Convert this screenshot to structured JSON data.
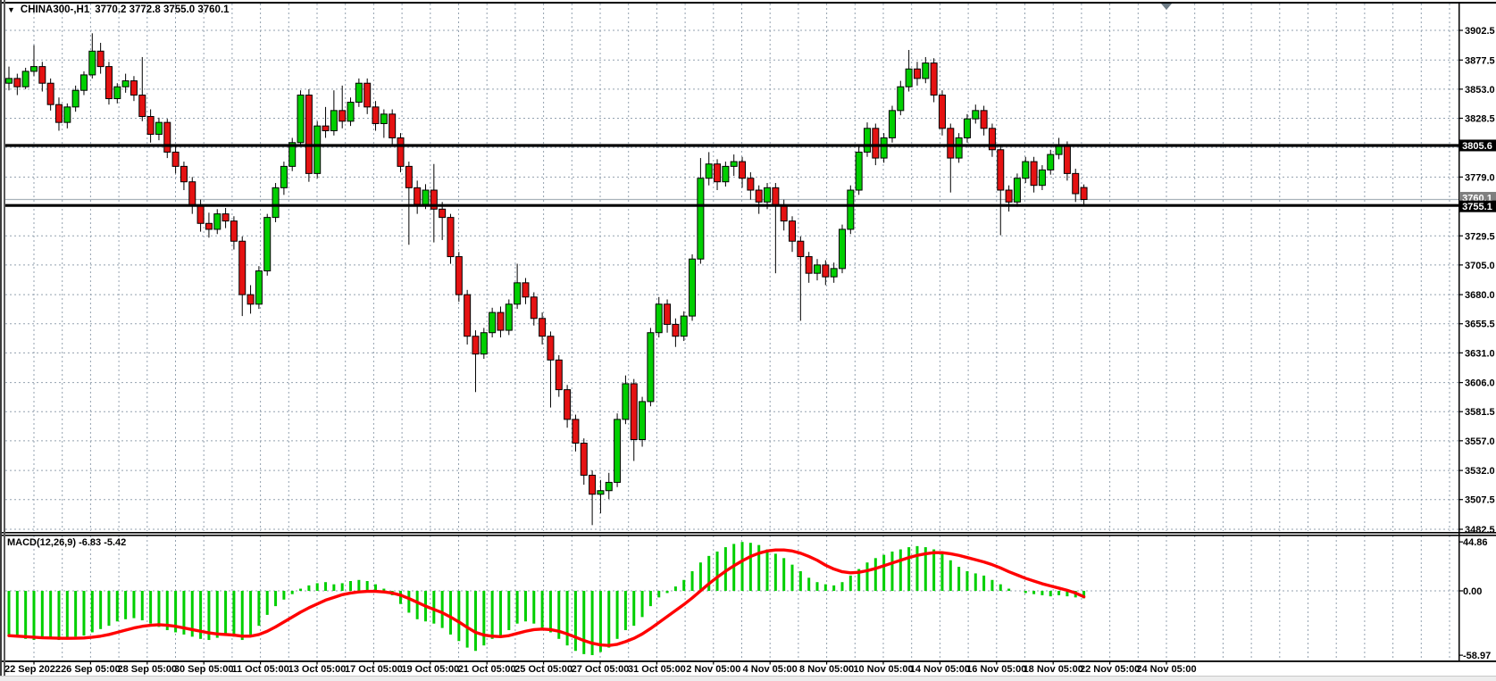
{
  "title_bar": {
    "symbol_period": "CHINA300-,H1",
    "ohlc_text": "3770.2 3772.8 3755.0 3760.1",
    "dropdown_icon": "chevron-down-icon"
  },
  "colors": {
    "background": "#ffffff",
    "bull": "#00cf00",
    "bear": "#e51212",
    "candle_outline": "#000000",
    "wick": "#000000",
    "grid": "#93a1af",
    "frame": "#000000",
    "axis_text": "#000000",
    "level_line": "#000000",
    "current_price_line": "#a9b2ba",
    "badge_black_bg": "#000000",
    "badge_gray_bg": "#7f7f7f",
    "badge_text": "#ffffff",
    "macd_histogram": "#00cf00",
    "macd_signal": "#ff0000",
    "shift_marker": "#6d7b85",
    "bottom_strip": "#ededed"
  },
  "price_axis": {
    "tick_labels": [
      "3902.5",
      "3877.5",
      "3853.0",
      "3828.5",
      "3779.0",
      "3729.5",
      "3705.0",
      "3680.0",
      "3655.5",
      "3631.0",
      "3606.0",
      "3581.5",
      "3557.0",
      "3532.0",
      "3507.5",
      "3482.5"
    ],
    "tick_values": [
      3902.5,
      3877.5,
      3853.0,
      3828.5,
      3779.0,
      3729.5,
      3705.0,
      3680.0,
      3655.5,
      3631.0,
      3606.0,
      3581.5,
      3557.0,
      3532.0,
      3507.5,
      3482.5
    ],
    "hidden_grid_values": [
      3804.0,
      3754.5
    ]
  },
  "levels": {
    "resistance": {
      "value": 3805.6,
      "label": "3805.6"
    },
    "support": {
      "value": 3755.1,
      "label": "3755.1"
    },
    "current": {
      "value": 3760.1,
      "label": "3760.1"
    }
  },
  "indicator": {
    "label": "MACD(12,26,9) -6.83 -5.42",
    "name": "MACD",
    "params": "12,26,9",
    "macd_value": -6.83,
    "signal_value": -5.42,
    "axis_labels": [
      "44.86",
      "0.00",
      "-58.97"
    ],
    "axis_values": [
      44.86,
      0,
      -58.97
    ]
  },
  "chart_data": [
    {
      "type": "candlestick",
      "title": "CHINA300-,H1",
      "last_bar": {
        "open": 3770.2,
        "high": 3772.8,
        "low": 3755.0,
        "close": 3760.1
      },
      "ylim": [
        3482.5,
        3902.5
      ],
      "grid": "on",
      "x_labels": [
        "22 Sep 2022",
        "26 Sep 05:00",
        "28 Sep 05:00",
        "30 Sep 05:00",
        "11 Oct 05:00",
        "13 Oct 05:00",
        "17 Oct 05:00",
        "19 Oct 05:00",
        "21 Oct 05:00",
        "25 Oct 05:00",
        "27 Oct 05:00",
        "31 Oct 05:00",
        "2 Nov 05:00",
        "4 Nov 05:00",
        "8 Nov 05:00",
        "10 Nov 05:00",
        "14 Nov 05:00",
        "16 Nov 05:00",
        "18 Nov 05:00",
        "22 Nov 05:00",
        "24 Nov 05:00"
      ],
      "candles": [
        [
          3858,
          3872,
          3852,
          3862
        ],
        [
          3862,
          3866,
          3848,
          3855
        ],
        [
          3855,
          3871,
          3853,
          3868
        ],
        [
          3868,
          3890,
          3864,
          3872
        ],
        [
          3872,
          3876,
          3851,
          3858
        ],
        [
          3858,
          3862,
          3835,
          3840
        ],
        [
          3840,
          3846,
          3818,
          3825
        ],
        [
          3825,
          3841,
          3820,
          3838
        ],
        [
          3838,
          3856,
          3834,
          3852
        ],
        [
          3852,
          3868,
          3848,
          3865
        ],
        [
          3865,
          3900,
          3862,
          3885
        ],
        [
          3885,
          3892,
          3866,
          3872
        ],
        [
          3872,
          3876,
          3840,
          3845
        ],
        [
          3845,
          3858,
          3841,
          3855
        ],
        [
          3855,
          3866,
          3850,
          3860
        ],
        [
          3860,
          3864,
          3843,
          3848
        ],
        [
          3848,
          3880,
          3826,
          3830
        ],
        [
          3830,
          3836,
          3808,
          3815
        ],
        [
          3815,
          3829,
          3810,
          3825
        ],
        [
          3825,
          3828,
          3795,
          3800
        ],
        [
          3800,
          3806,
          3782,
          3788
        ],
        [
          3788,
          3792,
          3768,
          3775
        ],
        [
          3775,
          3779,
          3748,
          3755
        ],
        [
          3755,
          3760,
          3733,
          3740
        ],
        [
          3740,
          3749,
          3728,
          3735
        ],
        [
          3735,
          3752,
          3731,
          3748
        ],
        [
          3748,
          3753,
          3736,
          3742
        ],
        [
          3742,
          3746,
          3718,
          3725
        ],
        [
          3725,
          3729,
          3662,
          3680
        ],
        [
          3680,
          3688,
          3664,
          3672
        ],
        [
          3672,
          3704,
          3668,
          3700
        ],
        [
          3700,
          3748,
          3696,
          3745
        ],
        [
          3745,
          3774,
          3741,
          3770
        ],
        [
          3770,
          3792,
          3764,
          3788
        ],
        [
          3788,
          3812,
          3784,
          3808
        ],
        [
          3808,
          3852,
          3806,
          3848
        ],
        [
          3848,
          3853,
          3775,
          3782
        ],
        [
          3782,
          3826,
          3778,
          3822
        ],
        [
          3822,
          3838,
          3812,
          3818
        ],
        [
          3818,
          3852,
          3814,
          3835
        ],
        [
          3835,
          3856,
          3820,
          3826
        ],
        [
          3826,
          3846,
          3822,
          3842
        ],
        [
          3842,
          3862,
          3838,
          3858
        ],
        [
          3858,
          3862,
          3832,
          3838
        ],
        [
          3838,
          3843,
          3818,
          3824
        ],
        [
          3824,
          3836,
          3812,
          3832
        ],
        [
          3832,
          3836,
          3806,
          3812
        ],
        [
          3812,
          3816,
          3783,
          3788
        ],
        [
          3788,
          3792,
          3722,
          3770
        ],
        [
          3770,
          3776,
          3748,
          3756
        ],
        [
          3756,
          3773,
          3752,
          3768
        ],
        [
          3768,
          3790,
          3724,
          3752
        ],
        [
          3752,
          3758,
          3726,
          3745
        ],
        [
          3745,
          3748,
          3706,
          3712
        ],
        [
          3712,
          3716,
          3674,
          3680
        ],
        [
          3680,
          3684,
          3638,
          3645
        ],
        [
          3645,
          3650,
          3598,
          3630
        ],
        [
          3630,
          3652,
          3626,
          3648
        ],
        [
          3648,
          3669,
          3644,
          3665
        ],
        [
          3665,
          3670,
          3644,
          3650
        ],
        [
          3650,
          3676,
          3646,
          3672
        ],
        [
          3672,
          3706,
          3668,
          3690
        ],
        [
          3690,
          3694,
          3672,
          3678
        ],
        [
          3678,
          3682,
          3654,
          3660
        ],
        [
          3660,
          3665,
          3638,
          3645
        ],
        [
          3645,
          3649,
          3585,
          3625
        ],
        [
          3625,
          3629,
          3594,
          3600
        ],
        [
          3600,
          3604,
          3568,
          3575
        ],
        [
          3575,
          3579,
          3548,
          3555
        ],
        [
          3555,
          3559,
          3520,
          3528
        ],
        [
          3528,
          3532,
          3486,
          3512
        ],
        [
          3512,
          3524,
          3496,
          3515
        ],
        [
          3515,
          3530,
          3508,
          3522
        ],
        [
          3522,
          3580,
          3518,
          3575
        ],
        [
          3575,
          3612,
          3571,
          3605
        ],
        [
          3605,
          3609,
          3540,
          3558
        ],
        [
          3558,
          3594,
          3552,
          3590
        ],
        [
          3590,
          3652,
          3586,
          3648
        ],
        [
          3648,
          3678,
          3644,
          3672
        ],
        [
          3672,
          3676,
          3648,
          3655
        ],
        [
          3655,
          3660,
          3636,
          3645
        ],
        [
          3645,
          3666,
          3641,
          3662
        ],
        [
          3662,
          3714,
          3658,
          3710
        ],
        [
          3710,
          3795,
          3706,
          3778
        ],
        [
          3778,
          3800,
          3772,
          3790
        ],
        [
          3790,
          3794,
          3768,
          3775
        ],
        [
          3775,
          3792,
          3771,
          3788
        ],
        [
          3788,
          3798,
          3780,
          3792
        ],
        [
          3792,
          3796,
          3770,
          3778
        ],
        [
          3778,
          3783,
          3760,
          3768
        ],
        [
          3768,
          3772,
          3748,
          3758
        ],
        [
          3758,
          3774,
          3752,
          3770
        ],
        [
          3770,
          3774,
          3698,
          3755
        ],
        [
          3755,
          3760,
          3734,
          3742
        ],
        [
          3742,
          3746,
          3716,
          3725
        ],
        [
          3725,
          3729,
          3658,
          3712
        ],
        [
          3712,
          3716,
          3690,
          3698
        ],
        [
          3698,
          3710,
          3692,
          3705
        ],
        [
          3705,
          3709,
          3688,
          3695
        ],
        [
          3695,
          3707,
          3690,
          3702
        ],
        [
          3702,
          3739,
          3698,
          3735
        ],
        [
          3735,
          3772,
          3731,
          3768
        ],
        [
          3768,
          3805,
          3764,
          3800
        ],
        [
          3800,
          3825,
          3796,
          3820
        ],
        [
          3820,
          3824,
          3789,
          3795
        ],
        [
          3795,
          3816,
          3791,
          3812
        ],
        [
          3812,
          3839,
          3808,
          3835
        ],
        [
          3835,
          3860,
          3831,
          3855
        ],
        [
          3855,
          3886,
          3851,
          3870
        ],
        [
          3870,
          3876,
          3856,
          3862
        ],
        [
          3862,
          3880,
          3858,
          3875
        ],
        [
          3875,
          3879,
          3842,
          3848
        ],
        [
          3848,
          3852,
          3814,
          3820
        ],
        [
          3820,
          3824,
          3766,
          3795
        ],
        [
          3795,
          3816,
          3791,
          3812
        ],
        [
          3812,
          3832,
          3808,
          3828
        ],
        [
          3828,
          3840,
          3824,
          3835
        ],
        [
          3835,
          3839,
          3814,
          3820
        ],
        [
          3820,
          3824,
          3796,
          3802
        ],
        [
          3802,
          3806,
          3730,
          3768
        ],
        [
          3768,
          3772,
          3750,
          3758
        ],
        [
          3758,
          3782,
          3754,
          3778
        ],
        [
          3778,
          3796,
          3774,
          3792
        ],
        [
          3792,
          3796,
          3766,
          3772
        ],
        [
          3772,
          3789,
          3768,
          3785
        ],
        [
          3785,
          3802,
          3781,
          3798
        ],
        [
          3798,
          3812,
          3794,
          3805
        ],
        [
          3805,
          3809,
          3776,
          3782
        ],
        [
          3782,
          3786,
          3758,
          3765
        ],
        [
          3770.2,
          3772.8,
          3755.0,
          3760.1
        ]
      ]
    },
    {
      "type": "bar",
      "name": "MACD(12,26,9)",
      "ylim": [
        -58.97,
        44.86
      ],
      "histogram": [
        -40,
        -42,
        -44,
        -45,
        -44,
        -43,
        -45,
        -44,
        -42,
        -41,
        -38,
        -35,
        -32,
        -28,
        -26,
        -25,
        -27,
        -30,
        -33,
        -36,
        -38,
        -40,
        -42,
        -44,
        -45,
        -43,
        -40,
        -42,
        -45,
        -40,
        -32,
        -22,
        -14,
        -8,
        -3,
        2,
        5,
        7,
        8,
        6,
        7,
        9,
        10,
        9,
        6,
        2,
        -4,
        -12,
        -20,
        -26,
        -28,
        -30,
        -34,
        -40,
        -46,
        -52,
        -55,
        -50,
        -44,
        -42,
        -36,
        -30,
        -28,
        -30,
        -34,
        -38,
        -44,
        -50,
        -55,
        -58,
        -58.9,
        -56,
        -52,
        -44,
        -36,
        -32,
        -24,
        -14,
        -6,
        -2,
        4,
        10,
        18,
        26,
        32,
        36,
        40,
        43,
        44.8,
        44,
        42,
        38,
        34,
        30,
        24,
        18,
        12,
        8,
        6,
        5,
        8,
        14,
        20,
        26,
        30,
        33,
        36,
        38,
        40,
        41,
        40,
        38,
        34,
        28,
        22,
        18,
        16,
        14,
        10,
        6,
        2,
        0,
        -2,
        -3,
        -4,
        -5,
        -4,
        -5,
        -6,
        -6.83
      ],
      "signal": [
        -41,
        -41.5,
        -42,
        -42.5,
        -43,
        -43.2,
        -43.4,
        -43.5,
        -43.4,
        -43.2,
        -42.5,
        -41.5,
        -40,
        -38,
        -36,
        -34,
        -32.5,
        -31.5,
        -31,
        -31.5,
        -32.5,
        -34,
        -35.5,
        -37,
        -38.5,
        -39.5,
        -40,
        -40.5,
        -41.5,
        -41.5,
        -40,
        -37,
        -33,
        -28.5,
        -24,
        -19.5,
        -15.5,
        -12,
        -8.5,
        -6,
        -3.5,
        -2,
        -1,
        -0.5,
        -0.5,
        -1,
        -2,
        -4,
        -7,
        -10.5,
        -14,
        -17,
        -20,
        -24,
        -28.5,
        -33.5,
        -38,
        -40.5,
        -41.5,
        -42,
        -41,
        -39,
        -37,
        -35.5,
        -35,
        -35.5,
        -37,
        -39.5,
        -42.5,
        -45.5,
        -48,
        -49.5,
        -50,
        -49,
        -46.5,
        -43.5,
        -39.5,
        -34.5,
        -29,
        -23.5,
        -18,
        -12.5,
        -6.5,
        0,
        6.5,
        12.5,
        18,
        23,
        27.5,
        31.5,
        34.5,
        36.5,
        37.5,
        37.5,
        36.5,
        34.5,
        31.5,
        28,
        23.5,
        20,
        17.5,
        16.5,
        17,
        18.5,
        20.5,
        23,
        25.5,
        28,
        30.5,
        32.5,
        34,
        35,
        35,
        34,
        32.5,
        30.5,
        28.5,
        26.5,
        24,
        21,
        17.5,
        14.5,
        11.5,
        9,
        6.5,
        4.5,
        2.5,
        0.5,
        -2,
        -5.42
      ]
    }
  ]
}
